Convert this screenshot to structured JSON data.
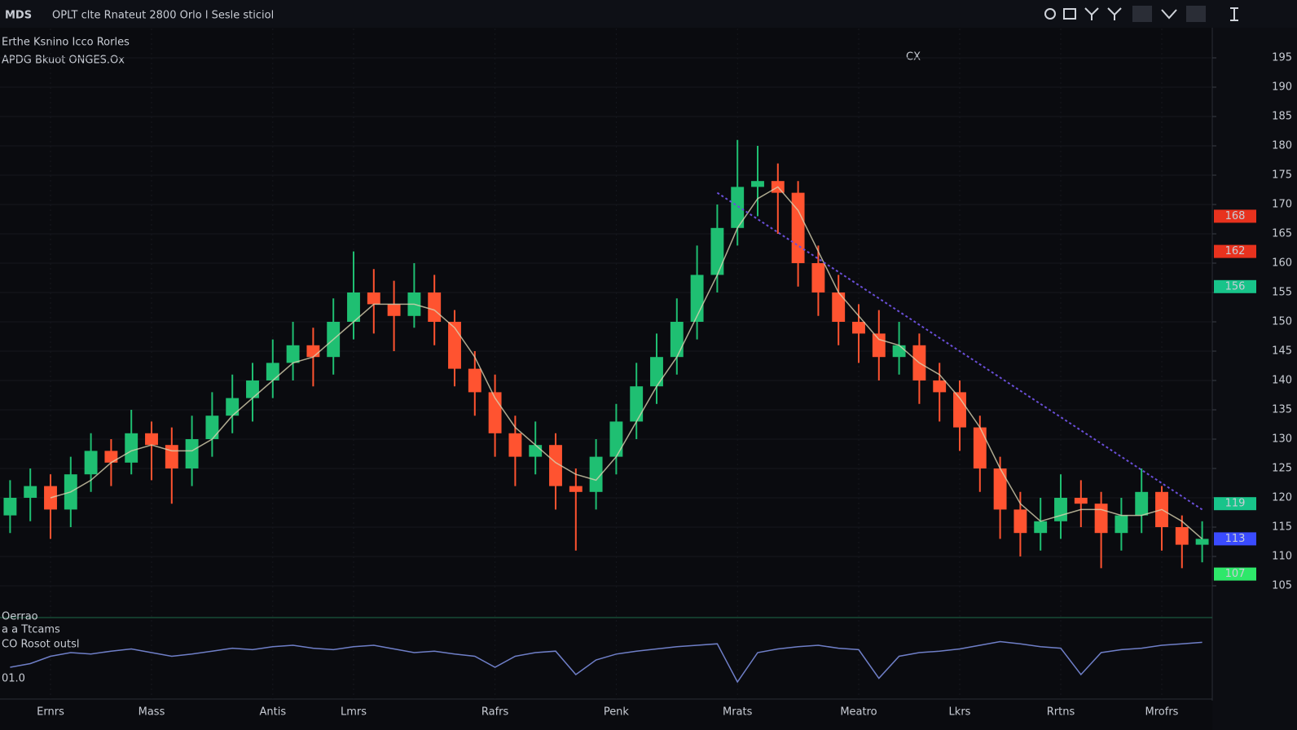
{
  "chart_data": {
    "type": "candlestick",
    "header": "OPLT clte Rnateut 2800 Orlo l Sesle sticiol",
    "title": "Erthe Ksnino Icco Rorles",
    "subtitle": "APDG Bkuot ONGES.Ox",
    "annotation": "CX",
    "up_color": "#1fbf72",
    "down_color": "#ff5330",
    "candles": {
      "open": [
        117,
        120,
        122,
        118,
        124,
        128,
        126,
        131,
        129,
        125,
        130,
        134,
        137,
        140,
        143,
        146,
        144,
        150,
        155,
        153,
        151,
        155,
        150,
        142,
        138,
        131,
        127,
        129,
        122,
        121,
        127,
        133,
        139,
        144,
        150,
        158,
        166,
        173,
        174,
        172,
        160,
        155,
        150,
        148,
        144,
        146,
        140,
        138,
        132,
        125,
        118,
        114,
        116,
        120,
        119,
        114,
        117,
        121,
        115,
        112
      ],
      "high": [
        123,
        125,
        124,
        127,
        131,
        130,
        135,
        133,
        132,
        134,
        138,
        141,
        143,
        147,
        150,
        149,
        154,
        162,
        159,
        157,
        160,
        158,
        152,
        145,
        141,
        134,
        133,
        131,
        125,
        130,
        136,
        143,
        148,
        154,
        163,
        170,
        181,
        180,
        177,
        174,
        163,
        158,
        153,
        152,
        150,
        148,
        143,
        140,
        134,
        127,
        121,
        120,
        124,
        123,
        121,
        120,
        125,
        122,
        117,
        116
      ],
      "low": [
        114,
        116,
        113,
        115,
        121,
        122,
        124,
        123,
        119,
        122,
        127,
        131,
        133,
        137,
        140,
        139,
        141,
        147,
        148,
        145,
        149,
        146,
        139,
        134,
        127,
        122,
        124,
        118,
        111,
        118,
        124,
        130,
        136,
        141,
        147,
        155,
        163,
        168,
        165,
        156,
        151,
        146,
        143,
        140,
        141,
        136,
        133,
        128,
        121,
        113,
        110,
        111,
        113,
        115,
        108,
        111,
        114,
        111,
        108,
        109
      ],
      "close": [
        120,
        122,
        118,
        124,
        128,
        126,
        131,
        129,
        125,
        130,
        134,
        137,
        140,
        143,
        146,
        144,
        150,
        155,
        153,
        151,
        155,
        150,
        142,
        138,
        131,
        127,
        129,
        122,
        121,
        127,
        133,
        139,
        144,
        150,
        158,
        166,
        173,
        174,
        172,
        160,
        155,
        150,
        148,
        144,
        146,
        140,
        138,
        132,
        125,
        118,
        114,
        116,
        120,
        119,
        114,
        117,
        121,
        115,
        112,
        113
      ]
    },
    "ma": {
      "color": "#d8d2b0",
      "values": [
        null,
        null,
        120,
        121,
        123,
        126,
        128,
        129,
        128,
        128,
        130,
        134,
        137,
        140,
        143,
        144,
        147,
        150,
        153,
        153,
        153,
        152,
        149,
        144,
        137,
        132,
        129,
        126,
        124,
        123,
        127,
        133,
        139,
        144,
        151,
        158,
        166,
        171,
        173,
        169,
        162,
        155,
        151,
        147,
        146,
        143,
        141,
        137,
        132,
        125,
        119,
        116,
        117,
        118,
        118,
        117,
        117,
        118,
        116,
        113
      ]
    },
    "trendline": {
      "color": "#6a4fd8",
      "x": [
        35,
        59
      ],
      "values": [
        172,
        118
      ]
    },
    "ylim": [
      100,
      200
    ],
    "yticks": [
      105,
      110,
      115,
      120,
      125,
      130,
      135,
      140,
      145,
      150,
      155,
      160,
      165,
      170,
      175,
      180,
      185,
      190,
      195
    ],
    "grid": true,
    "xticks": [
      {
        "value": 2,
        "label": "Ernrs"
      },
      {
        "value": 7,
        "label": "Mass"
      },
      {
        "value": 13,
        "label": "Antis"
      },
      {
        "value": 17,
        "label": "Lmrs"
      },
      {
        "value": 24,
        "label": "Rafrs"
      },
      {
        "value": 30,
        "label": "Penk"
      },
      {
        "value": 36,
        "label": "Mrats"
      },
      {
        "value": 42,
        "label": "Meatro"
      },
      {
        "value": 47,
        "label": "Lkrs"
      },
      {
        "value": 52,
        "label": "Rrtns"
      },
      {
        "value": 57,
        "label": "Mrofrs"
      }
    ],
    "price_tags": [
      {
        "value": 168,
        "color": "#e8321e"
      },
      {
        "value": 162,
        "color": "#e8321e"
      },
      {
        "value": 156,
        "color": "#18c48a"
      },
      {
        "value": 119,
        "color": "#18c48a"
      },
      {
        "value": 113,
        "color": "#3a4bff"
      },
      {
        "value": 107,
        "color": "#2ee86a"
      }
    ],
    "oscillator": {
      "color": "#6f7fc8",
      "ylim": [
        0,
        100
      ],
      "labels": [
        "Oerrao",
        "a a Ttcams",
        "CO Rosot outsl",
        "01.0"
      ],
      "values": [
        40,
        45,
        55,
        60,
        58,
        62,
        65,
        60,
        55,
        58,
        62,
        66,
        64,
        68,
        70,
        66,
        64,
        68,
        70,
        65,
        60,
        62,
        58,
        55,
        40,
        55,
        60,
        62,
        30,
        50,
        58,
        62,
        65,
        68,
        70,
        72,
        20,
        60,
        65,
        68,
        70,
        66,
        64,
        25,
        55,
        60,
        62,
        65,
        70,
        75,
        72,
        68,
        66,
        30,
        60,
        64,
        66,
        70,
        72,
        74
      ]
    }
  }
}
